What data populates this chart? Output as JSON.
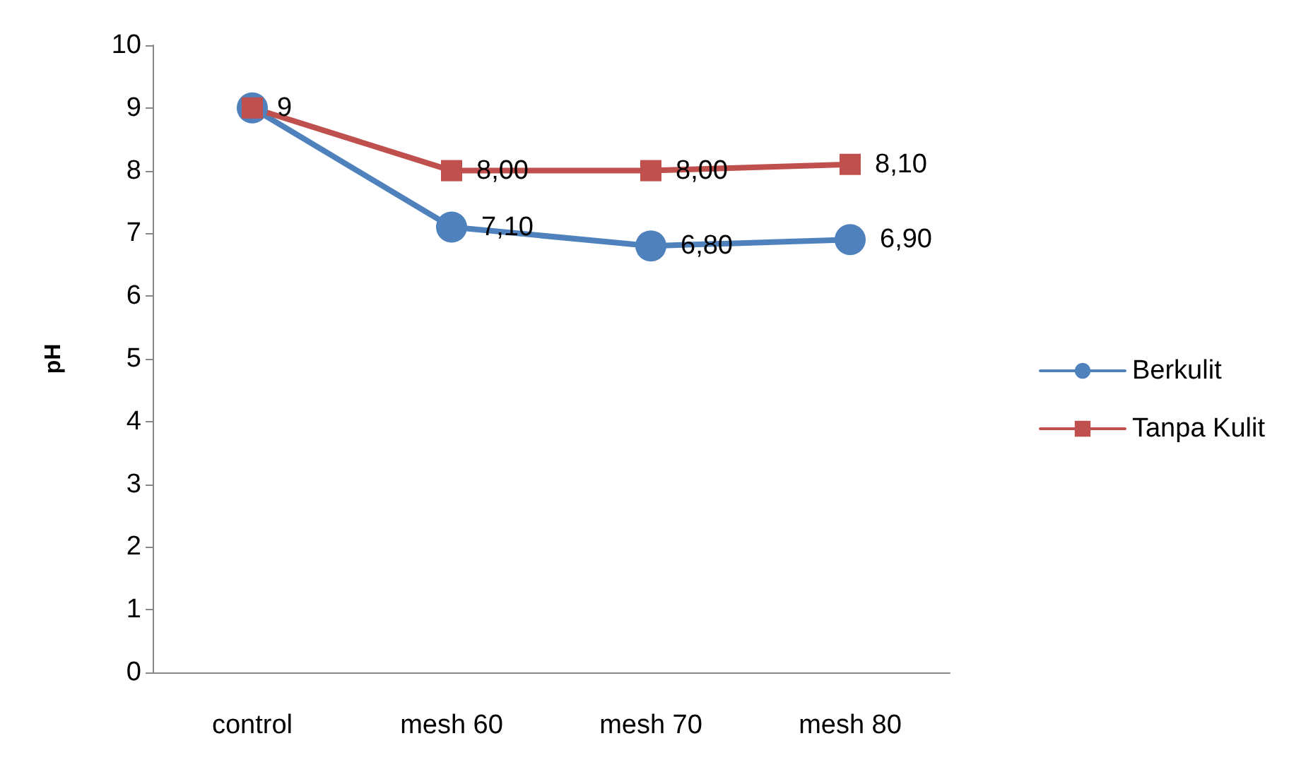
{
  "chart_data": {
    "type": "line",
    "ylabel": "pH",
    "categories": [
      "control",
      "mesh 60",
      "mesh 70",
      "mesh 80"
    ],
    "series": [
      {
        "name": "Berkulit",
        "color": "#4f81bd",
        "values": [
          9,
          7.1,
          6.8,
          6.9
        ],
        "value_labels": [
          null,
          "7,10",
          "6,80",
          "6,90"
        ],
        "marker": "circle"
      },
      {
        "name": "Tanpa Kulit",
        "color": "#c0504d",
        "values": [
          9,
          8,
          8,
          8.1
        ],
        "value_labels": [
          "9",
          "8,00",
          "8,00",
          "8,10"
        ],
        "marker": "square"
      }
    ],
    "ylim": [
      0,
      10
    ],
    "yticks": [
      0,
      1,
      2,
      3,
      4,
      5,
      6,
      7,
      8,
      9,
      10
    ],
    "grid": false,
    "legend": "right",
    "line_style": "solid"
  }
}
